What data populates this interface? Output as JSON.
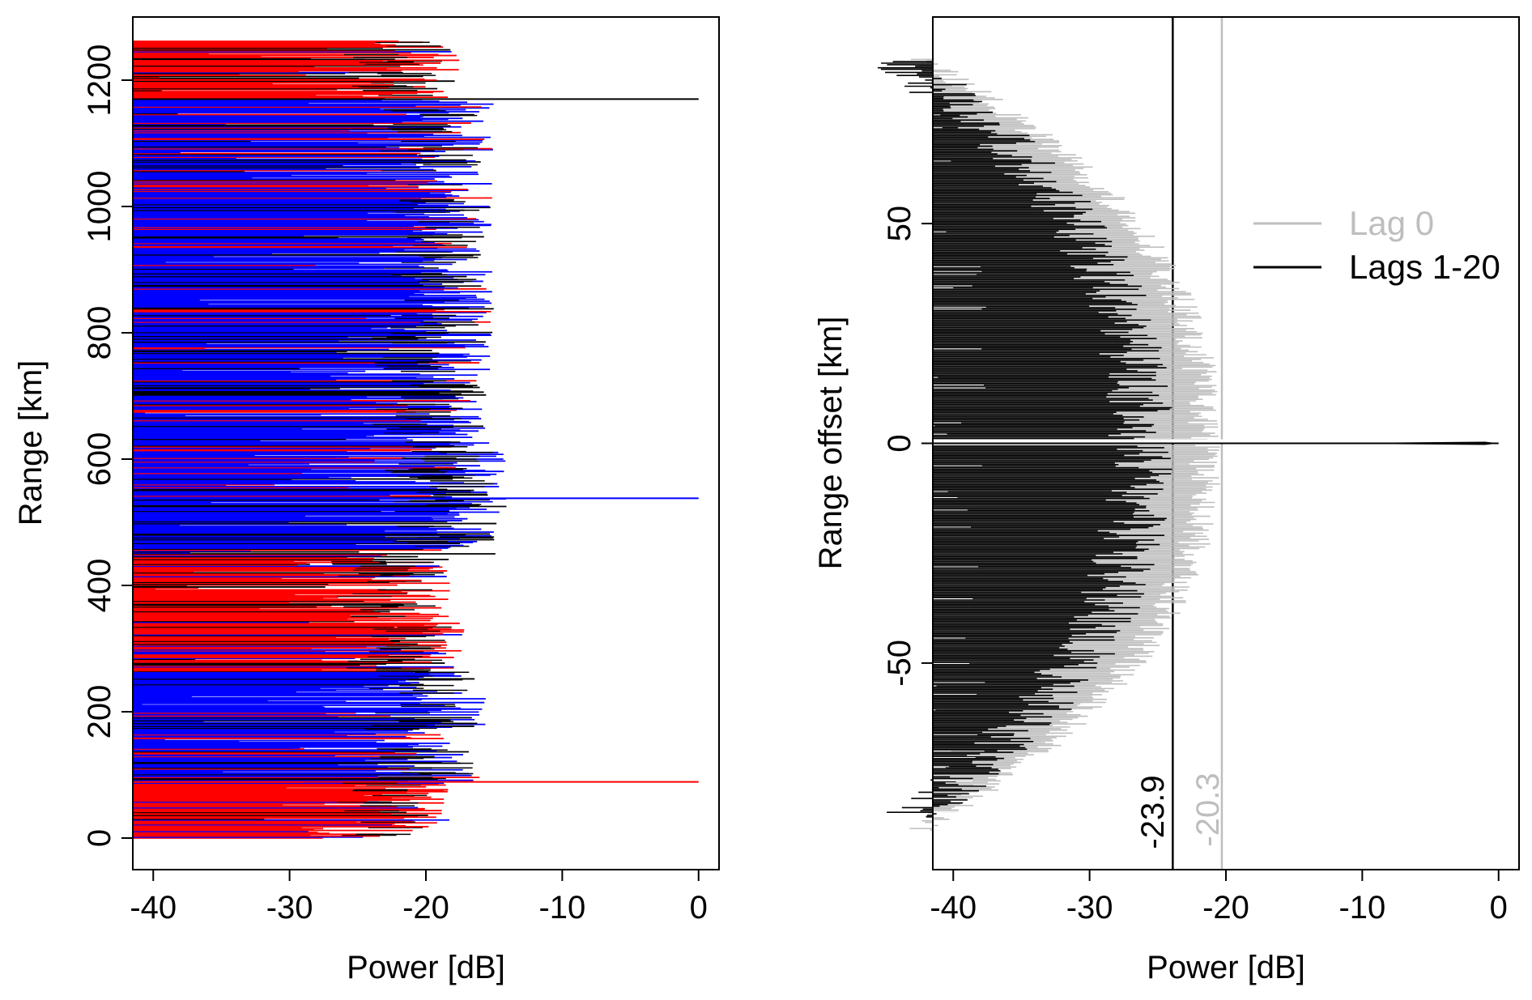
{
  "chart_data": [
    {
      "type": "line",
      "title": "",
      "xlabel": "Power [dB]",
      "ylabel": "Range [km]",
      "xlim": [
        -41.5,
        1.5
      ],
      "ylim": [
        -50,
        1300
      ],
      "xticks": [
        -40,
        -30,
        -20,
        -10,
        0
      ],
      "yticks": [
        0,
        200,
        400,
        600,
        800,
        1000,
        1200
      ],
      "colors": {
        "black": "#000000",
        "red": "#ff0000",
        "blue": "#0000ff"
      },
      "noise_floor_db": -41.5,
      "segments": [
        {
          "range": [
            0,
            90
          ],
          "color": "#ff0000",
          "envelope_db": -22
        },
        {
          "range": [
            90,
            265
          ],
          "color": "#0000ff",
          "envelope_db": -19.5
        },
        {
          "range": [
            265,
            345
          ],
          "color": "#ff0000",
          "envelope_db": -21
        },
        {
          "range": [
            345,
            450
          ],
          "color": "#ff0000",
          "envelope_db": -22
        },
        {
          "range": [
            450,
            640
          ],
          "color": "#0000ff",
          "envelope_db": -18
        },
        {
          "range": [
            640,
            1170
          ],
          "color": "#0000ff",
          "envelope_db": -19
        },
        {
          "range": [
            1170,
            1262
          ],
          "color": "#ff0000",
          "envelope_db": -21.5
        }
      ],
      "spikes": [
        {
          "range": 1170,
          "power_db": 0,
          "color": "#000000"
        },
        {
          "range": 538,
          "power_db": 0,
          "color": "#0000ff"
        },
        {
          "range": 89,
          "power_db": 0,
          "color": "#ff0000"
        }
      ]
    },
    {
      "type": "line",
      "title": "",
      "xlabel": "Power [dB]",
      "ylabel": "Range offset [km]",
      "xlim": [
        -41.5,
        1.5
      ],
      "ylim": [
        -97,
        97
      ],
      "xticks": [
        -40,
        -30,
        -20,
        -10,
        0
      ],
      "yticks": [
        -50,
        0,
        50
      ],
      "legend_position": "top-right",
      "series": [
        {
          "name": "Lag 0",
          "color": "#bebebe",
          "peak_db": 0,
          "sidelobe_level_db": -20.3,
          "edge_db": -41.5,
          "extent_km": [
            -88,
            88
          ]
        },
        {
          "name": "Lags 1-20",
          "color": "#000000",
          "peak_db": 0,
          "sidelobe_level_db": -23.9,
          "edge_db": -41.5,
          "extent_km": [
            -85,
            87
          ]
        }
      ],
      "reference_lines": [
        {
          "x": -23.9,
          "label": "-23.9",
          "color": "#000000"
        },
        {
          "x": -20.3,
          "label": "-20.3",
          "color": "#bebebe"
        }
      ]
    }
  ]
}
